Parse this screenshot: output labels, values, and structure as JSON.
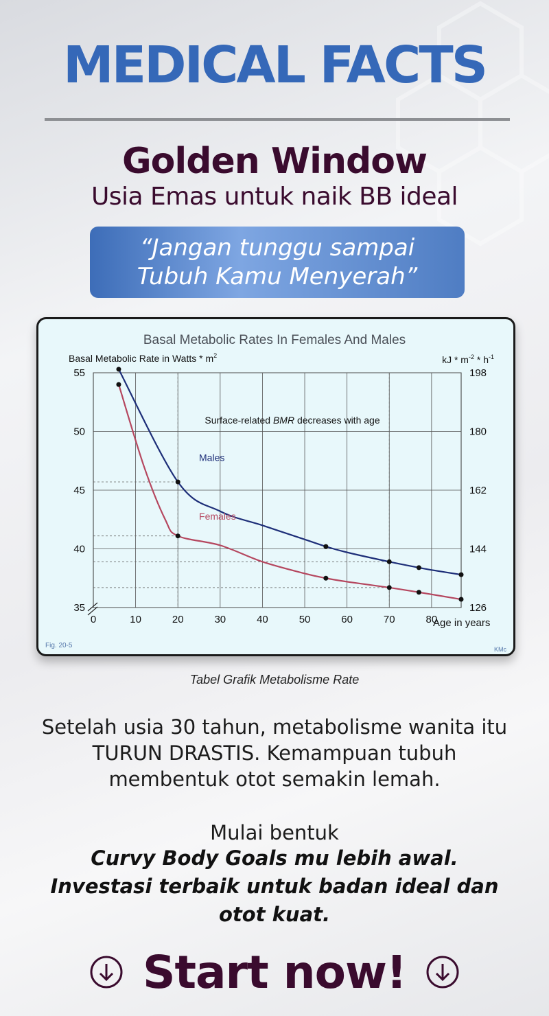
{
  "header": {
    "headline": "MEDICAL FACTS",
    "title": "Golden Window",
    "subtitle": "Usia Emas untuk naik BB ideal",
    "quote_line1": "“Jangan tunggu sampai",
    "quote_line2": "Tubuh Kamu Menyerah”"
  },
  "colors": {
    "headline": "#3568b8",
    "accent_dark": "#3a0b2e",
    "males": "#1d2e78",
    "females": "#b5475f"
  },
  "chart_data": {
    "type": "line",
    "title": "Basal Metabolic Rates In Females And Males",
    "ylabel": "Basal Metabolic Rate in Watts * m",
    "ylabel_sup": "2",
    "ylabel_right": "kJ * m",
    "ylabel_right_sup1": "-2",
    "ylabel_right_mid": " * h",
    "ylabel_right_sup2": "-1",
    "annotation_pre": "Surface-related ",
    "annotation_em": "BMR",
    "annotation_post": " decreases with age",
    "fig_label": "Fig. 20-5",
    "credit": "KMc",
    "xlabel": "Age in years",
    "xlim": [
      0,
      87
    ],
    "ylim": [
      35,
      55
    ],
    "x_ticks": [
      "0",
      "10",
      "20",
      "30",
      "40",
      "50",
      "60",
      "70",
      "80"
    ],
    "y_ticks": [
      "35",
      "40",
      "45",
      "50",
      "55"
    ],
    "y_ticks_right": [
      "126",
      "144",
      "162",
      "180",
      "198"
    ],
    "series": [
      {
        "name": "Males",
        "x": [
          6,
          20,
          30,
          40,
          50,
          55,
          60,
          70,
          77,
          80,
          87
        ],
        "y": [
          55.3,
          45.7,
          43.2,
          42.0,
          40.8,
          40.2,
          39.7,
          38.9,
          38.4,
          38.2,
          37.8
        ],
        "markers_x": [
          6,
          20,
          55,
          70,
          77,
          87
        ],
        "markers_y": [
          55.3,
          45.7,
          40.2,
          38.9,
          38.4,
          37.8
        ]
      },
      {
        "name": "Females",
        "x": [
          6,
          12,
          17,
          20,
          30,
          40,
          50,
          55,
          60,
          70,
          77,
          87
        ],
        "y": [
          54.0,
          47.0,
          42.5,
          41.1,
          40.3,
          38.9,
          37.9,
          37.5,
          37.2,
          36.7,
          36.3,
          35.7
        ],
        "markers_x": [
          6,
          20,
          55,
          70,
          77,
          87
        ],
        "markers_y": [
          54.0,
          41.1,
          37.5,
          36.7,
          36.3,
          35.7
        ]
      }
    ],
    "reference_lines": [
      {
        "y": 45.7,
        "x_end": 20
      },
      {
        "y": 41.1,
        "x_end": 20
      },
      {
        "y": 38.9,
        "x_end": 70
      },
      {
        "y": 36.7,
        "x_end": 70
      }
    ],
    "reference_verticals": [
      20,
      70
    ],
    "grid": true
  },
  "caption": "Tabel Grafik Metabolisme Rate",
  "body": {
    "paragraph": "Setelah usia 30 tahun, metabolisme wanita itu TURUN DRASTIS. Kemampuan tubuh membentuk otot semakin lemah.",
    "start_line": "Mulai bentuk",
    "goals_line1": "Curvy Body Goals mu lebih awal.",
    "goals_line2": "Investasi terbaik untuk badan ideal dan",
    "goals_line3": "otot kuat."
  },
  "cta": {
    "label": "Start now!",
    "icon_left": "arrow-down-circle-icon",
    "icon_right": "arrow-down-circle-icon"
  }
}
